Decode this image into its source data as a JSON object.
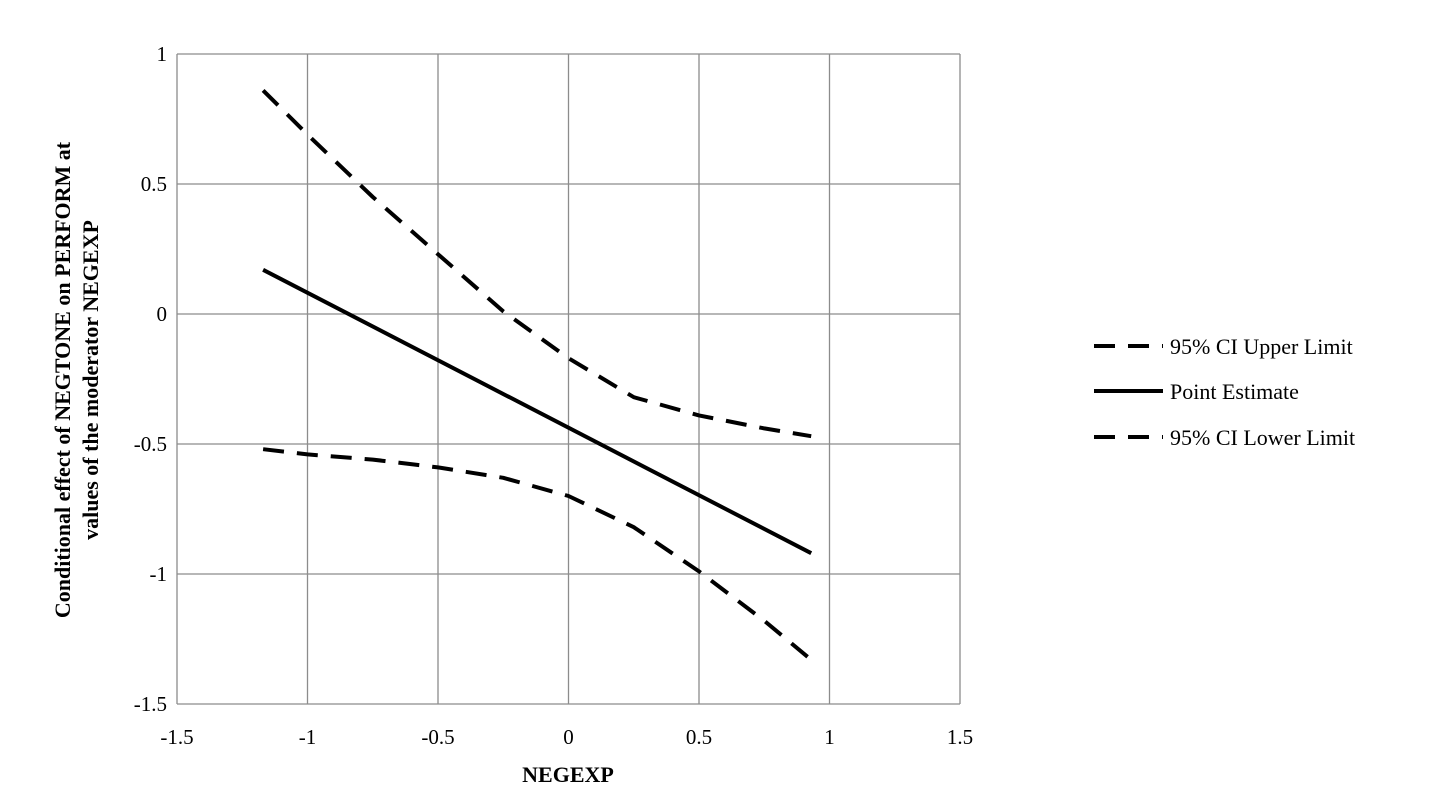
{
  "chart_data": {
    "type": "line",
    "title": "",
    "xlabel": "NEGEXP",
    "ylabel_lines": [
      "Conditional effect of NEGTONE on PERFORM at",
      "values of the moderator NEGEXP"
    ],
    "xlim": [
      -1.5,
      1.5
    ],
    "ylim": [
      -1.5,
      1
    ],
    "xticks": [
      -1.5,
      -1,
      -0.5,
      0,
      0.5,
      1,
      1.5
    ],
    "yticks": [
      1,
      0.5,
      0,
      -0.5,
      -1,
      -1.5
    ],
    "xtick_labels": [
      "-1.5",
      "-1",
      "-0.5",
      "0",
      "0.5",
      "1",
      "1.5"
    ],
    "ytick_labels": [
      "1",
      "0.5",
      "0",
      "-0.5",
      "-1",
      "-1.5"
    ],
    "grid": true,
    "legend_position": "right",
    "series": [
      {
        "name": "95% CI Upper Limit",
        "style": "dashed",
        "color": "#000000",
        "x": [
          -1.17,
          -1.0,
          -0.75,
          -0.5,
          -0.25,
          0.0,
          0.25,
          0.5,
          0.75,
          0.93
        ],
        "y": [
          0.86,
          0.69,
          0.45,
          0.23,
          0.01,
          -0.17,
          -0.32,
          -0.39,
          -0.44,
          -0.47
        ]
      },
      {
        "name": "Point Estimate",
        "style": "solid",
        "color": "#000000",
        "x": [
          -1.17,
          0.93
        ],
        "y": [
          0.17,
          -0.92
        ]
      },
      {
        "name": "95% CI Lower Limit",
        "style": "dashed",
        "color": "#000000",
        "x": [
          -1.17,
          -1.0,
          -0.75,
          -0.5,
          -0.25,
          0.0,
          0.25,
          0.5,
          0.75,
          0.93
        ],
        "y": [
          -0.52,
          -0.54,
          -0.56,
          -0.59,
          -0.63,
          -0.7,
          -0.82,
          -0.99,
          -1.18,
          -1.33
        ]
      }
    ]
  }
}
